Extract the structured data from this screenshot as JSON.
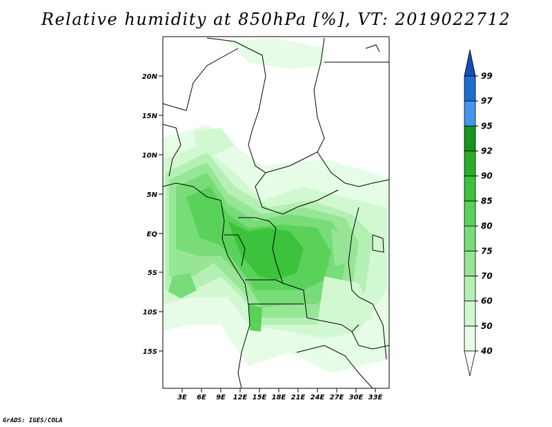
{
  "title": "Relative humidity at 850hPa [%], VT: 2019022712",
  "credit": "GrADS: IGES/COLA",
  "lat_ticks": [
    "20N",
    "15N",
    "10N",
    "5N",
    "EQ",
    "5S",
    "10S",
    "15S"
  ],
  "lon_ticks": [
    "3E",
    "6E",
    "9E",
    "12E",
    "15E",
    "18E",
    "21E",
    "24E",
    "27E",
    "30E",
    "33E"
  ],
  "colorbar": {
    "levels": [
      "40",
      "50",
      "60",
      "70",
      "75",
      "80",
      "85",
      "90",
      "92",
      "95",
      "97",
      "99"
    ],
    "colors": [
      "#ffffff",
      "#e6fce6",
      "#d2f8d2",
      "#b4f0b4",
      "#96e696",
      "#78dc78",
      "#5ad25a",
      "#3cc23c",
      "#28ae28",
      "#14961e",
      "#4696f0",
      "#1e6ed2",
      "#1450b4"
    ]
  }
}
